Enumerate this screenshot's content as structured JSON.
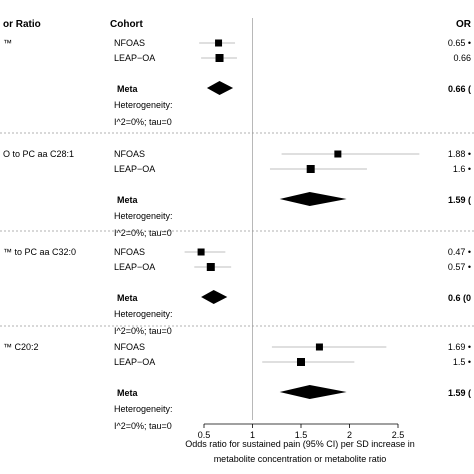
{
  "chart_data": {
    "type": "forest",
    "headers": {
      "left": "or Ratio",
      "cohort": "Cohort",
      "right": "OR"
    },
    "xlabel_line1": "Odds ratio for sustained pain (95% CI) per SD increase in",
    "xlabel_line2": "metabolite concentration or metabolite ratio",
    "xlim": [
      0.2,
      2.8
    ],
    "xticks": [
      0.5,
      1,
      1.5,
      2,
      2.5
    ],
    "xtick_labels": [
      "0.5",
      "1",
      "1.5",
      "2",
      "2.5"
    ],
    "reference_line": 1,
    "groups": [
      {
        "label": "™",
        "studies": [
          {
            "cohort": "NFOAS",
            "or": 0.65,
            "lo": 0.45,
            "hi": 0.82,
            "or_text": "0.65 •"
          },
          {
            "cohort": "LEAP−OA",
            "or": 0.66,
            "lo": 0.47,
            "hi": 0.84,
            "or_text": "0.66"
          }
        ],
        "meta": {
          "label": "Meta",
          "or": 0.66,
          "lo": 0.53,
          "hi": 0.8,
          "or_text": "0.66 ("
        },
        "heterogeneity_label": "Heterogeneity:",
        "heterogeneity_stats": "I^2=0%; tau=0"
      },
      {
        "label": "O to PC aa C28:1",
        "studies": [
          {
            "cohort": "NFOAS",
            "or": 1.88,
            "lo": 1.3,
            "hi": 2.72,
            "or_text": "1.88 •"
          },
          {
            "cohort": "LEAP−OA",
            "or": 1.6,
            "lo": 1.18,
            "hi": 2.18,
            "or_text": "1.6 •"
          }
        ],
        "meta": {
          "label": "Meta",
          "or": 1.59,
          "lo": 1.28,
          "hi": 1.97,
          "or_text": "1.59 ("
        },
        "heterogeneity_label": "Heterogeneity:",
        "heterogeneity_stats": "I^2=0%; tau=0"
      },
      {
        "label": "™ to PC aa C32:0",
        "studies": [
          {
            "cohort": "NFOAS",
            "or": 0.47,
            "lo": 0.3,
            "hi": 0.72,
            "or_text": "0.47 •"
          },
          {
            "cohort": "LEAP−OA",
            "or": 0.57,
            "lo": 0.4,
            "hi": 0.78,
            "or_text": "0.57 •"
          }
        ],
        "meta": {
          "label": "Meta",
          "or": 0.6,
          "lo": 0.47,
          "hi": 0.74,
          "or_text": "0.6 (0"
        },
        "heterogeneity_label": "Heterogeneity:",
        "heterogeneity_stats": "I^2=0%; tau=0"
      },
      {
        "label": "™ C20:2",
        "studies": [
          {
            "cohort": "NFOAS",
            "or": 1.69,
            "lo": 1.2,
            "hi": 2.38,
            "or_text": "1.69 •"
          },
          {
            "cohort": "LEAP−OA",
            "or": 1.5,
            "lo": 1.1,
            "hi": 2.05,
            "or_text": "1.5 •"
          }
        ],
        "meta": {
          "label": "Meta",
          "or": 1.59,
          "lo": 1.28,
          "hi": 1.97,
          "or_text": "1.59 ("
        },
        "heterogeneity_label": "Heterogeneity:",
        "heterogeneity_stats": "I^2=0%; tau=0"
      }
    ]
  }
}
